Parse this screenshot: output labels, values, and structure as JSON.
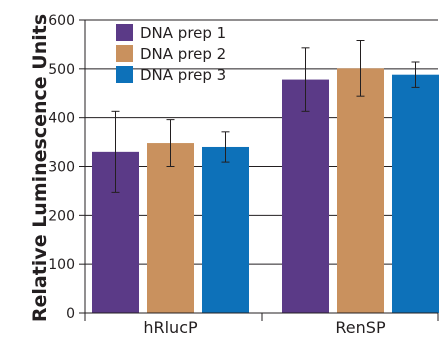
{
  "chart_data": {
    "type": "bar",
    "title": "",
    "xlabel": "",
    "ylabel": "Relative Luminescence Units",
    "categories": [
      "hRlucP",
      "RenSP"
    ],
    "ylim": [
      0,
      600
    ],
    "yticks": [
      0,
      100,
      200,
      300,
      400,
      500,
      600
    ],
    "grid": true,
    "legend_placement": "top-left",
    "series": [
      {
        "name": "DNA prep 1",
        "color": "#5b3a87",
        "values": [
          330,
          478
        ],
        "errors": [
          83,
          65
        ]
      },
      {
        "name": "DNA prep 2",
        "color": "#c9915e",
        "values": [
          348,
          501
        ],
        "errors": [
          48,
          57
        ]
      },
      {
        "name": "DNA prep 3",
        "color": "#0d71b9",
        "values": [
          340,
          488
        ],
        "errors": [
          31,
          26
        ]
      }
    ]
  }
}
